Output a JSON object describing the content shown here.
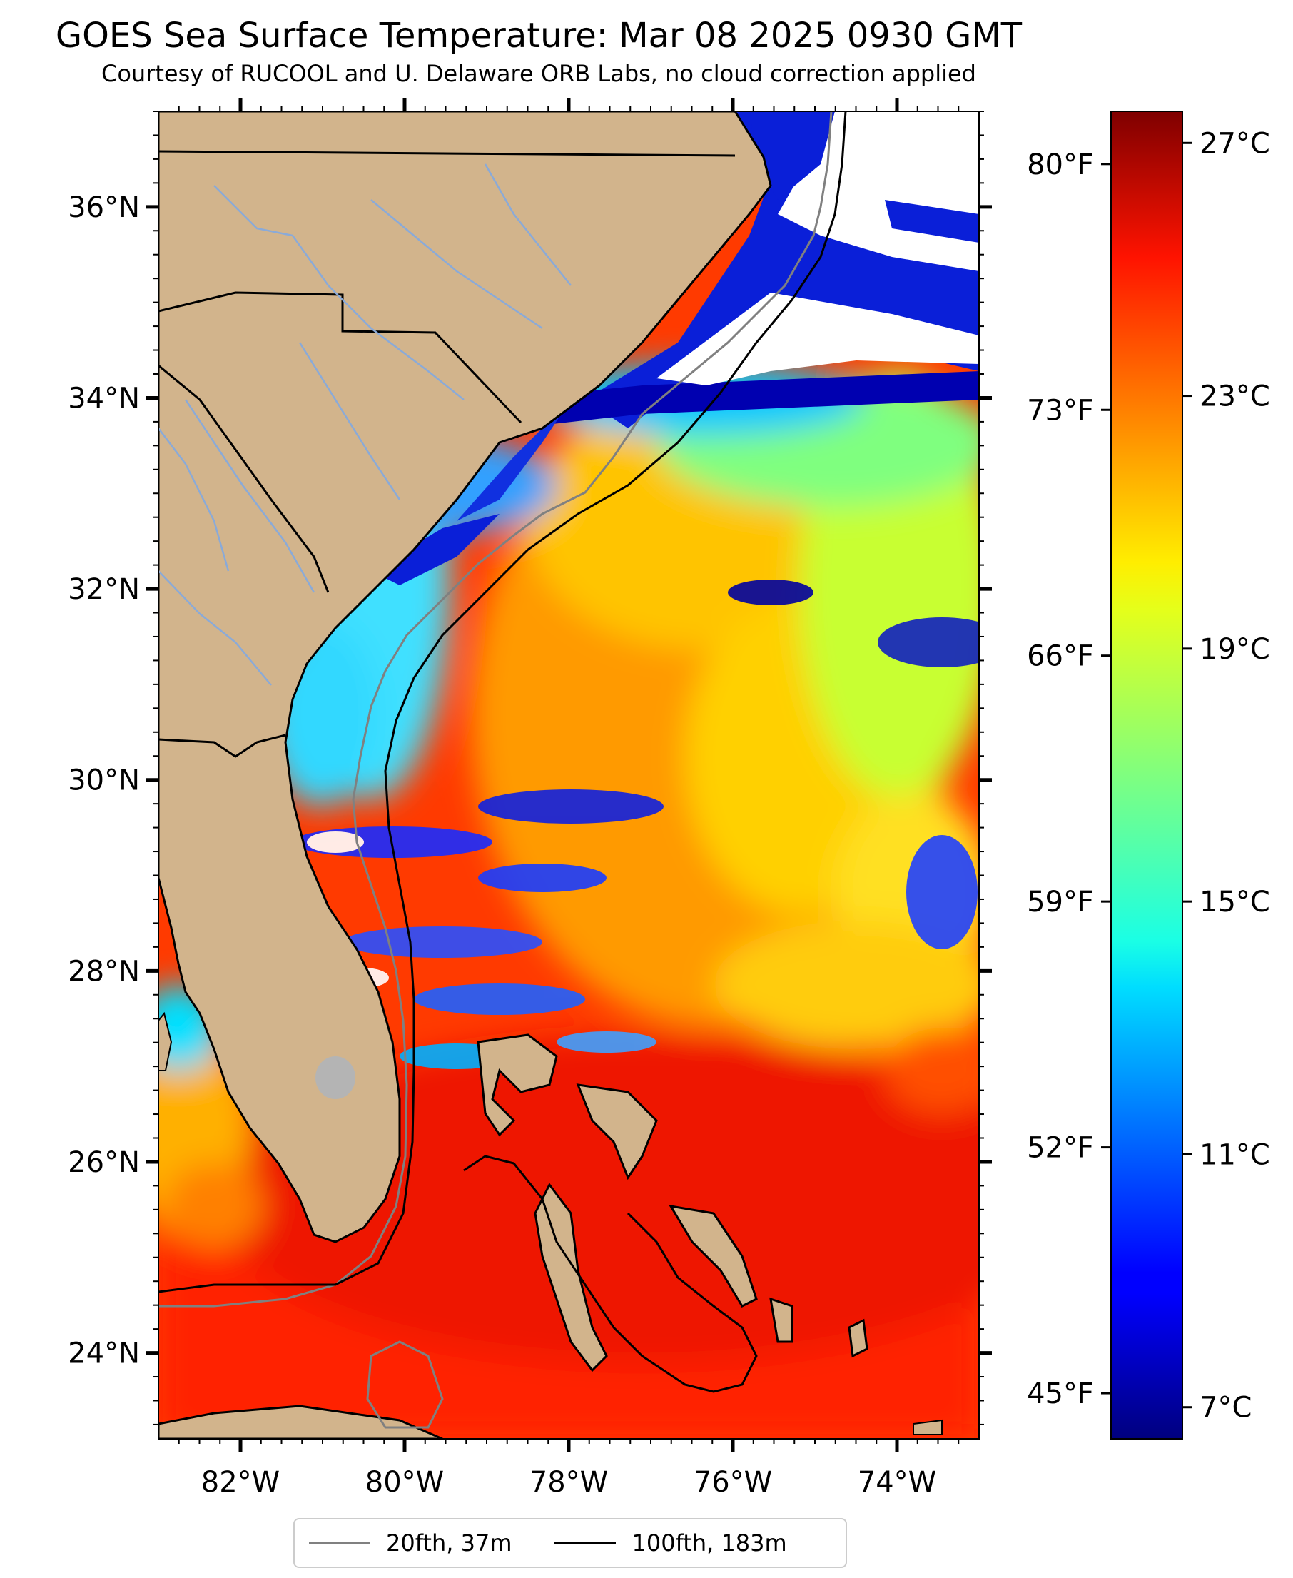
{
  "title": "GOES Sea Surface Temperature: Mar 08 2025 0930 GMT",
  "subtitle": "Courtesy of RUCOOL and U. Delaware ORB Labs, no cloud correction applied",
  "map": {
    "lon_range": [
      -83,
      -73
    ],
    "lat_range": [
      23.1,
      37.0
    ],
    "lat_ticks": [
      {
        "value": 24,
        "label": "24°N"
      },
      {
        "value": 26,
        "label": "26°N"
      },
      {
        "value": 28,
        "label": "28°N"
      },
      {
        "value": 30,
        "label": "30°N"
      },
      {
        "value": 32,
        "label": "32°N"
      },
      {
        "value": 34,
        "label": "34°N"
      },
      {
        "value": 36,
        "label": "36°N"
      }
    ],
    "lon_ticks": [
      {
        "value": -82,
        "label": "82°W"
      },
      {
        "value": -80,
        "label": "80°W"
      },
      {
        "value": -78,
        "label": "78°W"
      },
      {
        "value": -76,
        "label": "76°W"
      },
      {
        "value": -74,
        "label": "74°W"
      }
    ],
    "colors": {
      "land": "#d2b48c",
      "cloud": "#ffffff",
      "contour_20": "#808080",
      "contour_100": "#000000"
    }
  },
  "colorbar": {
    "colormap": "jet",
    "range_c": [
      6.5,
      27.5
    ],
    "celsius_ticks": [
      {
        "value": 7,
        "label": "7°C"
      },
      {
        "value": 11,
        "label": "11°C"
      },
      {
        "value": 15,
        "label": "15°C"
      },
      {
        "value": 19,
        "label": "19°C"
      },
      {
        "value": 23,
        "label": "23°C"
      },
      {
        "value": 27,
        "label": "27°C"
      }
    ],
    "fahrenheit_ticks": [
      {
        "value": 45,
        "label": "45°F"
      },
      {
        "value": 52,
        "label": "52°F"
      },
      {
        "value": 59,
        "label": "59°F"
      },
      {
        "value": 66,
        "label": "66°F"
      },
      {
        "value": 73,
        "label": "73°F"
      },
      {
        "value": 80,
        "label": "80°F"
      }
    ]
  },
  "legend": {
    "items": [
      {
        "label": "20fth, 37m",
        "color": "#808080"
      },
      {
        "label": "100fth, 183m",
        "color": "#000000"
      }
    ]
  }
}
